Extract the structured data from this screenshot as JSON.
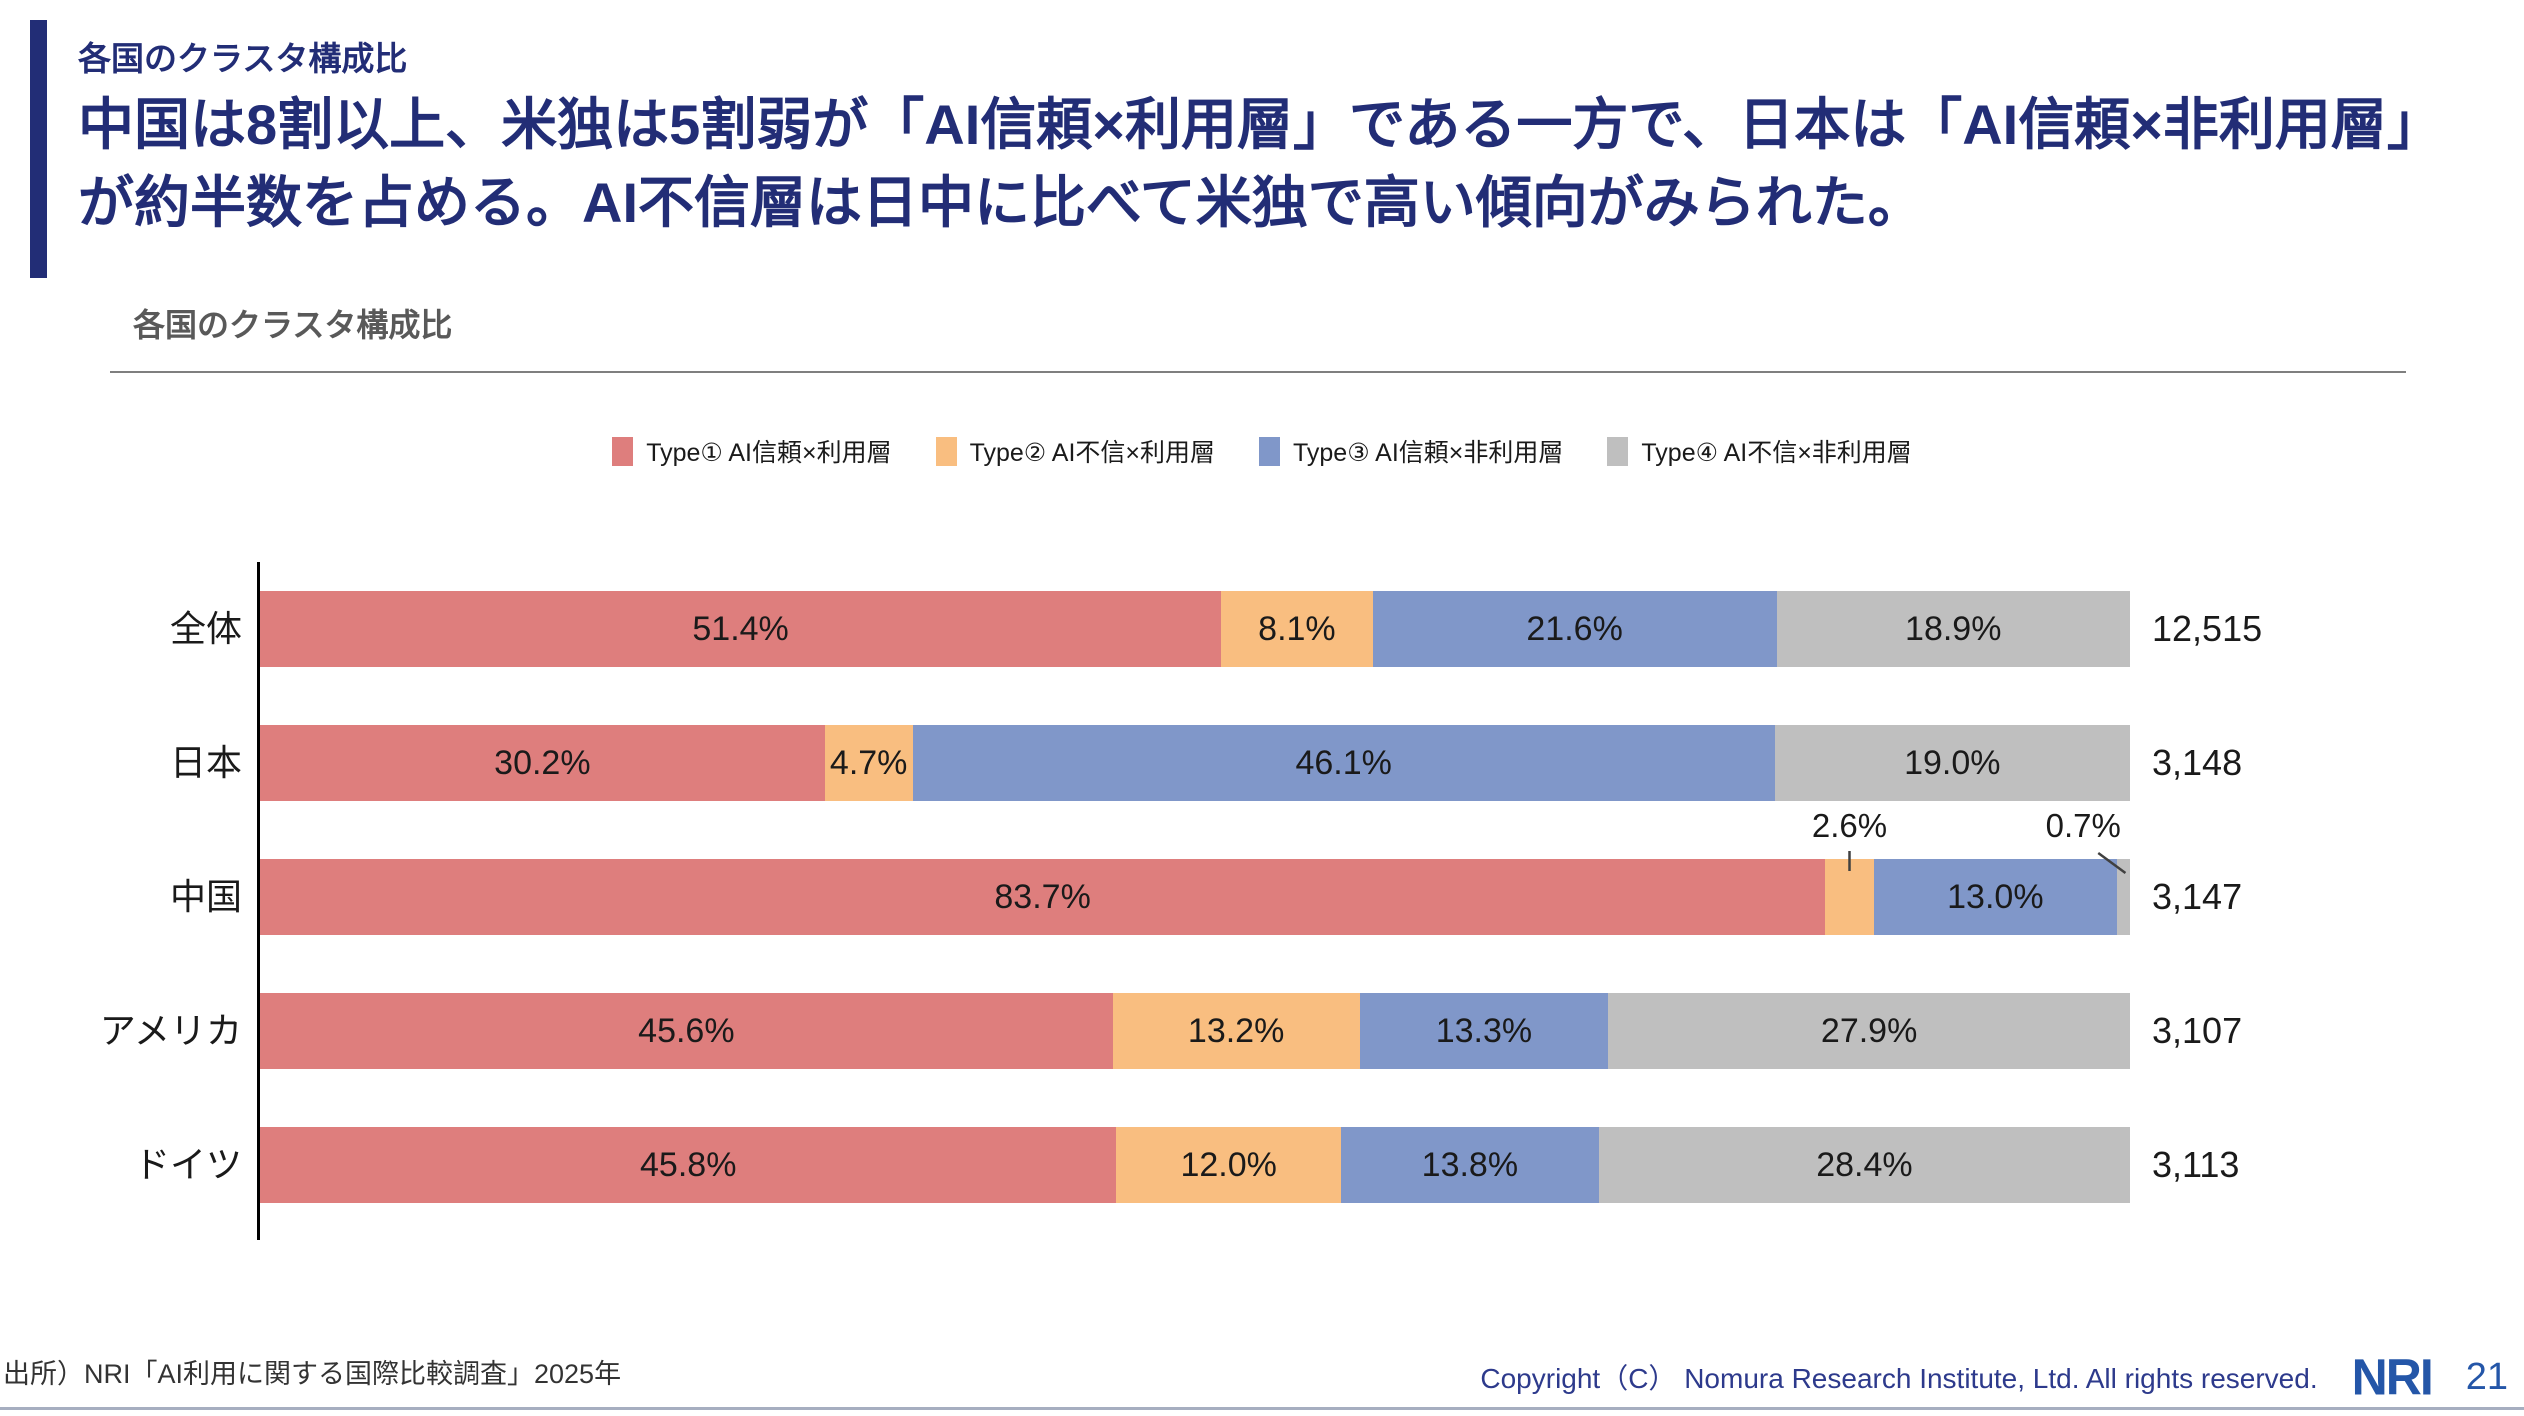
{
  "header": {
    "eyebrow": "各国のクラスタ構成比",
    "title": "中国は8割以上、米独は5割弱が「AI信頼×利用層」である一方で、日本は「AI信頼×非利用層」が約半数を占める。AI不信層は日中に比べて米独で高い傾向がみられた。"
  },
  "chart": {
    "subtitle": "各国のクラスタ構成比"
  },
  "chart_data": {
    "type": "bar",
    "orientation": "horizontal",
    "stacked": true,
    "value_unit": "percent",
    "x_range": [
      0,
      100
    ],
    "grid": false,
    "legend_position": "top-center",
    "categories": [
      "全体",
      "日本",
      "中国",
      "アメリカ",
      "ドイツ"
    ],
    "category_totals": [
      "12,515",
      "3,148",
      "3,147",
      "3,107",
      "3,113"
    ],
    "series": [
      {
        "name": "Type① AI信頼×利用層",
        "color": "#de7e7d",
        "values": [
          51.4,
          30.2,
          83.7,
          45.6,
          45.8
        ]
      },
      {
        "name": "Type② AI不信×利用層",
        "color": "#f9be80",
        "values": [
          8.1,
          4.7,
          2.6,
          13.2,
          12.0
        ]
      },
      {
        "name": "Type③ AI信頼×非利用層",
        "color": "#8097c9",
        "values": [
          21.6,
          46.1,
          13.0,
          13.3,
          13.8
        ]
      },
      {
        "name": "Type④ AI不信×非利用層",
        "color": "#bfbfbf",
        "values": [
          18.9,
          19.0,
          0.7,
          27.9,
          28.4
        ]
      }
    ],
    "callout_labels": [
      {
        "category": "中国",
        "category_index": 2,
        "series_index": 1,
        "text": "2.6%",
        "label_x_pct": 85.0,
        "leader": "tick"
      },
      {
        "category": "中国",
        "category_index": 2,
        "series_index": 3,
        "text": "0.7%",
        "label_x_pct": 97.5,
        "leader": "diagonal"
      }
    ]
  },
  "footer": {
    "source": "出所）NRI「AI利用に関する国際比較調査」2025年",
    "copyright": "Copyright（C）  Nomura Research Institute, Ltd. All rights reserved.",
    "logo": "NRI",
    "page_number": "21"
  },
  "colors": {
    "accent_navy": "#222d76",
    "subtitle_gray": "#595959",
    "footer_blue": "#2d3a8c",
    "logo_blue": "#2456a8"
  }
}
